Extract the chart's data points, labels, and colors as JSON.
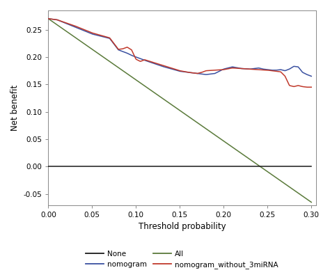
{
  "title": "",
  "xlabel": "Threshold probability",
  "ylabel": "Net benefit",
  "xlim": [
    0.0,
    0.305
  ],
  "ylim": [
    -0.07,
    0.285
  ],
  "xticks": [
    0.0,
    0.05,
    0.1,
    0.15,
    0.2,
    0.25,
    0.3
  ],
  "yticks": [
    -0.05,
    0.0,
    0.05,
    0.1,
    0.15,
    0.2,
    0.25
  ],
  "none_color": "#1a1a1a",
  "all_color": "#5a7a3a",
  "nomogram_color": "#3a50a0",
  "nomogram_without_color": "#c0392b",
  "background_color": "#ffffff",
  "legend_labels": [
    "None",
    "All",
    "nomogram",
    "nomogram_without_3miRNA"
  ]
}
